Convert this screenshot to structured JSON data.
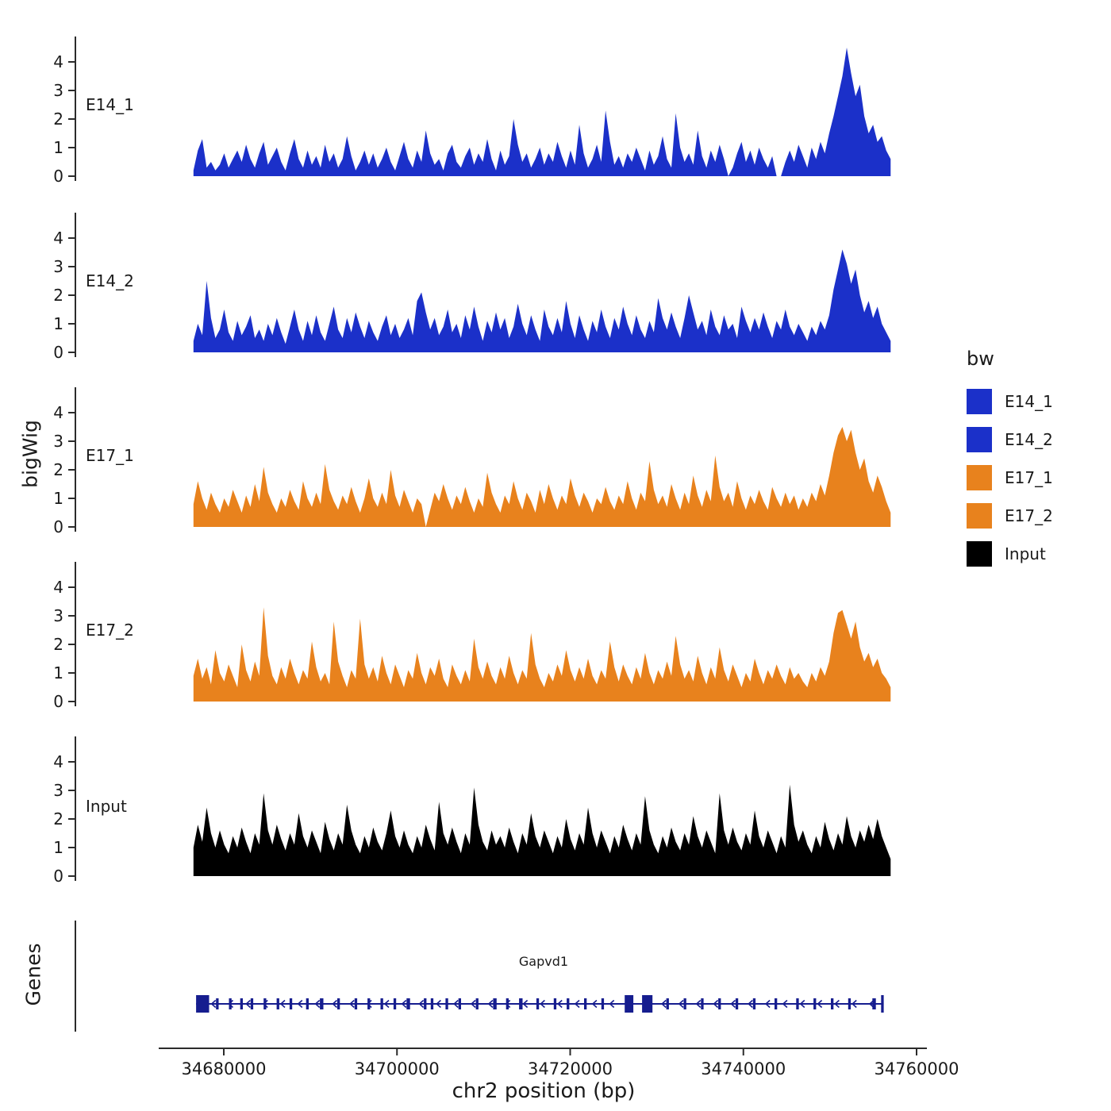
{
  "figure": {
    "y_axis_label": "bigWig",
    "genes_label": "Genes",
    "x_axis_label": "chr2 position (bp)",
    "gene_name": "Gapvd1",
    "legend": {
      "title": "bw",
      "items": [
        {
          "label": "E14_1",
          "color": "#1b30c9"
        },
        {
          "label": "E14_2",
          "color": "#1b30c9"
        },
        {
          "label": "E17_1",
          "color": "#e8821d"
        },
        {
          "label": "E17_2",
          "color": "#e8821d"
        },
        {
          "label": "Input",
          "color": "#000000"
        }
      ]
    }
  },
  "chart_data": {
    "type": "area",
    "title": "",
    "xlabel": "chr2 position (bp)",
    "ylabel": "bigWig",
    "x_start": 34676500,
    "x_end": 34757000,
    "x_ticks": [
      34680000,
      34700000,
      34720000,
      34740000,
      34760000
    ],
    "y_ticks": [
      0,
      1,
      2,
      3,
      4
    ],
    "ylim": [
      0,
      4.6
    ],
    "tracks": [
      {
        "name": "E14_1",
        "color": "#1b30c9",
        "values": [
          0.2,
          0.9,
          1.3,
          0.3,
          0.5,
          0.2,
          0.4,
          0.8,
          0.3,
          0.6,
          0.9,
          0.5,
          1.1,
          0.6,
          0.3,
          0.8,
          1.2,
          0.4,
          0.7,
          1.0,
          0.5,
          0.2,
          0.8,
          1.3,
          0.6,
          0.3,
          0.9,
          0.4,
          0.7,
          0.3,
          1.1,
          0.5,
          0.8,
          0.3,
          0.6,
          1.4,
          0.7,
          0.2,
          0.5,
          0.9,
          0.4,
          0.8,
          0.3,
          0.6,
          1.0,
          0.5,
          0.2,
          0.7,
          1.2,
          0.6,
          0.3,
          0.9,
          0.5,
          1.6,
          0.8,
          0.4,
          0.6,
          0.2,
          0.8,
          1.1,
          0.5,
          0.3,
          0.7,
          1.0,
          0.4,
          0.8,
          0.5,
          1.3,
          0.6,
          0.2,
          0.9,
          0.4,
          0.7,
          2.0,
          1.1,
          0.5,
          0.8,
          0.3,
          0.6,
          1.0,
          0.4,
          0.8,
          0.5,
          1.2,
          0.7,
          0.3,
          0.9,
          0.4,
          1.8,
          0.8,
          0.3,
          0.6,
          1.1,
          0.5,
          2.3,
          1.2,
          0.4,
          0.7,
          0.3,
          0.8,
          0.5,
          1.0,
          0.6,
          0.2,
          0.9,
          0.4,
          0.7,
          1.4,
          0.6,
          0.3,
          2.2,
          1.0,
          0.5,
          0.8,
          0.4,
          1.6,
          0.7,
          0.3,
          0.9,
          0.5,
          1.1,
          0.6,
          0,
          0.3,
          0.8,
          1.2,
          0.5,
          0.9,
          0.4,
          1.0,
          0.6,
          0.3,
          0.7,
          0,
          0,
          0.5,
          0.9,
          0.5,
          1.1,
          0.7,
          0.3,
          1.0,
          0.6,
          1.2,
          0.8,
          1.5,
          2.1,
          2.8,
          3.5,
          4.5,
          3.6,
          2.8,
          3.2,
          2.1,
          1.5,
          1.8,
          1.2,
          1.4,
          0.9,
          0.6
        ]
      },
      {
        "name": "E14_2",
        "color": "#1b30c9",
        "values": [
          0.4,
          1.0,
          0.6,
          2.5,
          1.2,
          0.5,
          0.8,
          1.5,
          0.7,
          0.4,
          1.1,
          0.6,
          0.9,
          1.3,
          0.5,
          0.8,
          0.4,
          1.0,
          0.6,
          1.2,
          0.7,
          0.3,
          0.9,
          1.5,
          0.8,
          0.4,
          1.1,
          0.6,
          1.3,
          0.7,
          0.4,
          1.0,
          1.6,
          0.8,
          0.5,
          1.2,
          0.7,
          1.4,
          0.9,
          0.5,
          1.1,
          0.7,
          0.4,
          0.9,
          1.3,
          0.6,
          1.0,
          0.5,
          0.8,
          1.2,
          0.6,
          1.8,
          2.1,
          1.4,
          0.8,
          1.2,
          0.6,
          0.9,
          1.5,
          0.7,
          1.0,
          0.5,
          1.3,
          0.8,
          1.6,
          0.9,
          0.4,
          1.1,
          0.7,
          1.4,
          0.8,
          1.2,
          0.5,
          0.9,
          1.7,
          1.0,
          0.6,
          1.3,
          0.8,
          0.4,
          1.5,
          0.9,
          0.6,
          1.2,
          0.7,
          1.8,
          1.0,
          0.5,
          1.3,
          0.8,
          0.4,
          1.1,
          0.7,
          1.5,
          0.9,
          0.5,
          1.2,
          0.8,
          1.6,
          1.0,
          0.6,
          1.3,
          0.8,
          0.5,
          1.1,
          0.7,
          1.9,
          1.2,
          0.8,
          1.4,
          0.9,
          0.5,
          1.2,
          2.0,
          1.4,
          0.8,
          1.1,
          0.6,
          1.5,
          0.9,
          0.6,
          1.3,
          0.8,
          1.0,
          0.5,
          1.6,
          1.1,
          0.7,
          1.2,
          0.8,
          1.4,
          0.9,
          0.5,
          1.1,
          0.8,
          1.5,
          0.9,
          0.6,
          1.0,
          0.7,
          0.4,
          0.9,
          0.6,
          1.1,
          0.8,
          1.3,
          2.2,
          2.9,
          3.6,
          3.1,
          2.4,
          2.9,
          2.0,
          1.4,
          1.8,
          1.2,
          1.6,
          1.0,
          0.7,
          0.4
        ]
      },
      {
        "name": "E17_1",
        "color": "#e8821d",
        "values": [
          0.8,
          1.6,
          1.0,
          0.6,
          1.2,
          0.8,
          0.5,
          1.0,
          0.7,
          1.3,
          0.9,
          0.5,
          1.1,
          0.7,
          1.5,
          0.9,
          2.1,
          1.2,
          0.8,
          0.5,
          1.0,
          0.7,
          1.3,
          0.9,
          0.6,
          1.6,
          1.0,
          0.7,
          1.2,
          0.8,
          2.2,
          1.3,
          0.9,
          0.6,
          1.1,
          0.8,
          1.4,
          0.9,
          0.5,
          1.0,
          1.7,
          1.0,
          0.7,
          1.2,
          0.8,
          2.0,
          1.1,
          0.7,
          1.3,
          0.9,
          0.5,
          1.0,
          0.8,
          0,
          0.6,
          1.2,
          0.9,
          1.5,
          1.0,
          0.6,
          1.1,
          0.8,
          1.4,
          0.9,
          0.5,
          1.0,
          0.7,
          1.9,
          1.2,
          0.8,
          0.5,
          1.1,
          0.8,
          1.6,
          1.0,
          0.6,
          1.2,
          0.9,
          0.5,
          1.3,
          0.8,
          1.5,
          1.0,
          0.6,
          1.1,
          0.8,
          1.7,
          1.1,
          0.7,
          1.2,
          0.9,
          0.5,
          1.0,
          0.8,
          1.4,
          0.9,
          0.6,
          1.1,
          0.8,
          1.6,
          1.0,
          0.6,
          1.2,
          0.9,
          2.3,
          1.3,
          0.8,
          1.1,
          0.7,
          1.5,
          1.0,
          0.6,
          1.2,
          0.8,
          1.8,
          1.1,
          0.7,
          1.3,
          0.9,
          2.5,
          1.4,
          0.9,
          1.2,
          0.7,
          1.6,
          1.0,
          0.6,
          1.1,
          0.8,
          1.3,
          0.9,
          0.6,
          1.4,
          1.0,
          0.7,
          1.2,
          0.8,
          1.1,
          0.6,
          1.0,
          0.7,
          1.2,
          0.9,
          1.5,
          1.1,
          1.8,
          2.6,
          3.2,
          3.5,
          3.0,
          3.4,
          2.6,
          2.0,
          2.4,
          1.6,
          1.2,
          1.8,
          1.4,
          0.9,
          0.5
        ]
      },
      {
        "name": "E17_2",
        "color": "#e8821d",
        "values": [
          0.9,
          1.5,
          0.8,
          1.2,
          0.6,
          1.8,
          1.0,
          0.7,
          1.3,
          0.9,
          0.5,
          2.0,
          1.1,
          0.7,
          1.4,
          0.9,
          3.3,
          1.6,
          0.9,
          0.6,
          1.2,
          0.8,
          1.5,
          1.0,
          0.6,
          1.1,
          0.8,
          2.1,
          1.2,
          0.7,
          1.0,
          0.6,
          2.8,
          1.4,
          0.9,
          0.5,
          1.1,
          0.8,
          2.9,
          1.3,
          0.8,
          1.2,
          0.7,
          1.6,
          1.0,
          0.6,
          1.3,
          0.9,
          0.5,
          1.1,
          0.8,
          1.7,
          1.0,
          0.6,
          1.2,
          0.9,
          1.5,
          0.8,
          0.5,
          1.3,
          0.9,
          0.6,
          1.1,
          0.7,
          2.2,
          1.2,
          0.8,
          1.4,
          0.9,
          0.6,
          1.2,
          0.8,
          1.6,
          1.0,
          0.6,
          1.1,
          0.8,
          2.4,
          1.3,
          0.8,
          0.5,
          1.0,
          0.7,
          1.3,
          0.9,
          1.8,
          1.1,
          0.7,
          1.2,
          0.8,
          1.5,
          0.9,
          0.6,
          1.1,
          0.8,
          2.1,
          1.2,
          0.7,
          1.3,
          0.9,
          0.6,
          1.2,
          0.8,
          1.7,
          1.0,
          0.6,
          1.1,
          0.8,
          1.4,
          0.9,
          2.3,
          1.3,
          0.8,
          1.1,
          0.7,
          1.6,
          1.0,
          0.6,
          1.2,
          0.8,
          1.9,
          1.1,
          0.7,
          1.3,
          0.9,
          0.5,
          1.0,
          0.7,
          1.5,
          1.0,
          0.6,
          1.1,
          0.8,
          1.3,
          0.9,
          0.6,
          1.2,
          0.8,
          1.0,
          0.7,
          0.5,
          1.0,
          0.7,
          1.2,
          0.9,
          1.4,
          2.4,
          3.1,
          3.2,
          2.7,
          2.2,
          2.8,
          1.9,
          1.4,
          1.7,
          1.2,
          1.5,
          1.0,
          0.8,
          0.5
        ]
      },
      {
        "name": "Input",
        "color": "#000000",
        "values": [
          1.0,
          1.8,
          1.2,
          2.4,
          1.5,
          1.0,
          1.6,
          1.1,
          0.8,
          1.4,
          1.0,
          1.7,
          1.2,
          0.8,
          1.5,
          1.1,
          2.9,
          1.6,
          1.1,
          1.8,
          1.3,
          0.9,
          1.5,
          1.1,
          2.2,
          1.4,
          1.0,
          1.6,
          1.2,
          0.8,
          1.9,
          1.3,
          0.9,
          1.5,
          1.1,
          2.5,
          1.6,
          1.1,
          0.8,
          1.4,
          1.0,
          1.7,
          1.2,
          0.9,
          1.5,
          2.3,
          1.4,
          1.0,
          1.6,
          1.1,
          0.8,
          1.4,
          1.0,
          1.8,
          1.3,
          0.9,
          2.6,
          1.5,
          1.1,
          1.7,
          1.2,
          0.8,
          1.5,
          1.1,
          3.1,
          1.8,
          1.2,
          0.9,
          1.6,
          1.1,
          1.4,
          1.0,
          1.7,
          1.2,
          0.8,
          1.5,
          1.1,
          2.2,
          1.4,
          1.0,
          1.6,
          1.2,
          0.8,
          1.4,
          1.0,
          2.0,
          1.3,
          0.9,
          1.5,
          1.1,
          2.4,
          1.5,
          1.0,
          1.6,
          1.2,
          0.8,
          1.4,
          1.0,
          1.8,
          1.3,
          0.9,
          1.5,
          1.1,
          2.8,
          1.6,
          1.1,
          0.8,
          1.4,
          1.0,
          1.7,
          1.2,
          0.9,
          1.5,
          1.1,
          2.1,
          1.4,
          1.0,
          1.6,
          1.2,
          0.8,
          2.9,
          1.6,
          1.1,
          1.7,
          1.2,
          0.9,
          1.5,
          1.1,
          2.3,
          1.4,
          1.0,
          1.6,
          1.2,
          0.8,
          1.4,
          1.0,
          3.2,
          1.8,
          1.2,
          1.6,
          1.1,
          0.8,
          1.4,
          1.0,
          1.9,
          1.3,
          0.9,
          1.5,
          1.1,
          2.1,
          1.4,
          1.0,
          1.6,
          1.2,
          1.8,
          1.3,
          2.0,
          1.4,
          1.0,
          0.6
        ]
      }
    ],
    "gene_track": {
      "name": "Gapvd1",
      "strand": "-",
      "start": 34676800,
      "end": 34756200,
      "color": "#161d8f",
      "exons": [
        [
          34676800,
          34678300,
          2
        ],
        [
          34679100,
          34679400,
          1
        ],
        [
          34680600,
          34680900,
          1
        ],
        [
          34681900,
          34682200,
          1
        ],
        [
          34683100,
          34683400,
          1
        ],
        [
          34684600,
          34684900,
          1
        ],
        [
          34686100,
          34686400,
          1
        ],
        [
          34687600,
          34687900,
          1
        ],
        [
          34689500,
          34689800,
          1
        ],
        [
          34691100,
          34691500,
          1
        ],
        [
          34693100,
          34693400,
          1
        ],
        [
          34695100,
          34695400,
          1
        ],
        [
          34696600,
          34696900,
          1
        ],
        [
          34698100,
          34698400,
          1
        ],
        [
          34699600,
          34699900,
          1
        ],
        [
          34701100,
          34701500,
          1
        ],
        [
          34703100,
          34703400,
          1
        ],
        [
          34703900,
          34704200,
          1
        ],
        [
          34705600,
          34705900,
          1
        ],
        [
          34707100,
          34707400,
          1
        ],
        [
          34709100,
          34709400,
          1
        ],
        [
          34711100,
          34711500,
          1
        ],
        [
          34712600,
          34712900,
          1
        ],
        [
          34714100,
          34714500,
          1
        ],
        [
          34716100,
          34716400,
          1
        ],
        [
          34718100,
          34718400,
          1
        ],
        [
          34719600,
          34719900,
          1
        ],
        [
          34721600,
          34721900,
          1
        ],
        [
          34723600,
          34723900,
          1
        ],
        [
          34726300,
          34727300,
          2
        ],
        [
          34728300,
          34729500,
          2
        ],
        [
          34731100,
          34731400,
          1
        ],
        [
          34733100,
          34733400,
          1
        ],
        [
          34735100,
          34735400,
          1
        ],
        [
          34737100,
          34737400,
          1
        ],
        [
          34739100,
          34739400,
          1
        ],
        [
          34741100,
          34741400,
          1
        ],
        [
          34743600,
          34743900,
          1
        ],
        [
          34746100,
          34746400,
          1
        ],
        [
          34748100,
          34748400,
          1
        ],
        [
          34750100,
          34750400,
          1
        ],
        [
          34752100,
          34752400,
          1
        ],
        [
          34754900,
          34755300,
          1
        ],
        [
          34755900,
          34756200,
          2
        ]
      ]
    }
  }
}
